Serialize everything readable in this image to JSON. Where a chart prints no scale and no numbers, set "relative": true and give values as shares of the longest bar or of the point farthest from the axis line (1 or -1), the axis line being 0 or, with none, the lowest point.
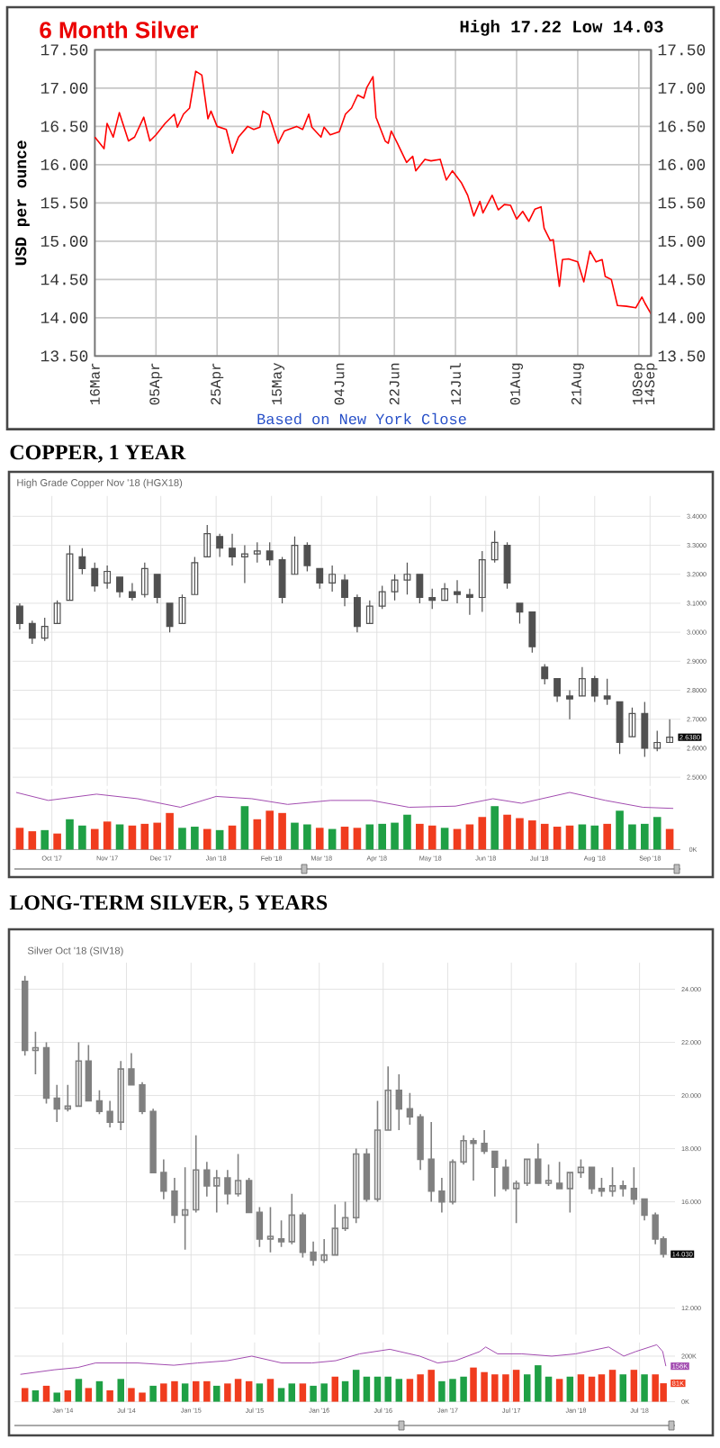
{
  "chart_data": [
    {
      "type": "line",
      "title": "6 Month Silver",
      "subtitle": "High 17.22 Low 14.03",
      "ylabel": "USD per ounce",
      "annotations": [
        "Based on New York Close"
      ],
      "x": [
        "2018-03-16",
        "2018-03-17",
        "2018-03-19",
        "2018-03-20",
        "2018-03-22",
        "2018-03-24",
        "2018-03-27",
        "2018-03-29",
        "2018-04-01",
        "2018-04-03",
        "2018-04-05",
        "2018-04-08",
        "2018-04-11",
        "2018-04-12",
        "2018-04-14",
        "2018-04-16",
        "2018-04-18",
        "2018-04-20",
        "2018-04-22",
        "2018-04-23",
        "2018-04-25",
        "2018-04-28",
        "2018-04-30",
        "2018-05-02",
        "2018-05-05",
        "2018-05-07",
        "2018-05-09",
        "2018-05-10",
        "2018-05-12",
        "2018-05-15",
        "2018-05-17",
        "2018-05-21",
        "2018-05-23",
        "2018-05-25",
        "2018-05-26",
        "2018-05-29",
        "2018-05-30",
        "2018-06-01",
        "2018-06-04",
        "2018-06-06",
        "2018-06-08",
        "2018-06-10",
        "2018-06-12",
        "2018-06-13",
        "2018-06-15",
        "2018-06-16",
        "2018-06-19",
        "2018-06-20",
        "2018-06-21",
        "2018-06-23",
        "2018-06-26",
        "2018-06-28",
        "2018-06-29",
        "2018-07-02",
        "2018-07-04",
        "2018-07-07",
        "2018-07-09",
        "2018-07-11",
        "2018-07-14",
        "2018-07-16",
        "2018-07-18",
        "2018-07-20",
        "2018-07-21",
        "2018-07-24",
        "2018-07-26",
        "2018-07-28",
        "2018-07-30",
        "2018-08-01",
        "2018-08-03",
        "2018-08-05",
        "2018-08-07",
        "2018-08-09",
        "2018-08-10",
        "2018-08-12",
        "2018-08-13",
        "2018-08-15",
        "2018-08-16",
        "2018-08-18",
        "2018-08-21",
        "2018-08-23",
        "2018-08-25",
        "2018-08-27",
        "2018-08-29",
        "2018-08-30",
        "2018-09-01",
        "2018-09-03",
        "2018-09-06",
        "2018-09-09",
        "2018-09-11",
        "2018-09-12",
        "2018-09-14"
      ],
      "values": [
        16.36,
        16.31,
        16.21,
        16.54,
        16.36,
        16.68,
        16.31,
        16.36,
        16.62,
        16.31,
        16.39,
        16.54,
        16.66,
        16.49,
        16.66,
        16.74,
        17.22,
        17.17,
        16.6,
        16.7,
        16.5,
        16.46,
        16.15,
        16.36,
        16.5,
        16.46,
        16.49,
        16.7,
        16.65,
        16.28,
        16.44,
        16.5,
        16.46,
        16.66,
        16.49,
        16.36,
        16.49,
        16.39,
        16.43,
        16.66,
        16.74,
        16.91,
        16.87,
        17.01,
        17.15,
        16.62,
        16.31,
        16.28,
        16.44,
        16.28,
        16.03,
        16.11,
        15.92,
        16.07,
        16.05,
        16.07,
        15.8,
        15.92,
        15.76,
        15.6,
        15.33,
        15.52,
        15.37,
        15.6,
        15.41,
        15.48,
        15.47,
        15.29,
        15.39,
        15.26,
        15.42,
        15.45,
        15.17,
        15.01,
        15.02,
        14.41,
        14.76,
        14.77,
        14.73,
        14.47,
        14.87,
        14.73,
        14.76,
        14.54,
        14.5,
        14.16,
        14.15,
        14.13,
        14.27,
        14.19,
        14.05
      ],
      "color": "#ff0000",
      "xlim": [
        "2018-03-16",
        "2018-09-14"
      ],
      "xticks": [
        {
          "value": "2018-03-16",
          "label": "16Mar"
        },
        {
          "value": "2018-04-05",
          "label": "05Apr"
        },
        {
          "value": "2018-04-25",
          "label": "25Apr"
        },
        {
          "value": "2018-05-15",
          "label": "15May"
        },
        {
          "value": "2018-06-04",
          "label": "04Jun"
        },
        {
          "value": "2018-06-22",
          "label": "22Jun"
        },
        {
          "value": "2018-07-12",
          "label": "12Jul"
        },
        {
          "value": "2018-08-01",
          "label": "01Aug"
        },
        {
          "value": "2018-08-21",
          "label": "21Aug"
        },
        {
          "value": "2018-09-10",
          "label": "10Sep"
        },
        {
          "value": "2018-09-14",
          "label": "14Sep"
        }
      ],
      "ylim": [
        13.5,
        17.5
      ],
      "yticks": [
        {
          "value": 13.5,
          "label": "13.50"
        },
        {
          "value": 14,
          "label": "14.00"
        },
        {
          "value": 14.5,
          "label": "14.50"
        },
        {
          "value": 15,
          "label": "15.00"
        },
        {
          "value": 15.5,
          "label": "15.50"
        },
        {
          "value": 16,
          "label": "16.00"
        },
        {
          "value": 16.5,
          "label": "16.50"
        },
        {
          "value": 17,
          "label": "17.00"
        },
        {
          "value": 17.5,
          "label": "17.50"
        }
      ],
      "y2lim": [
        13.5,
        17.5
      ],
      "y2ticks": [
        {
          "value": 13.5,
          "label": "13.50"
        },
        {
          "value": 14,
          "label": "14.00"
        },
        {
          "value": 14.5,
          "label": "14.50"
        },
        {
          "value": 15,
          "label": "15.00"
        },
        {
          "value": 15.5,
          "label": "15.50"
        },
        {
          "value": 16,
          "label": "16.00"
        },
        {
          "value": 16.5,
          "label": "16.50"
        },
        {
          "value": 17,
          "label": "17.00"
        },
        {
          "value": 17.5,
          "label": "17.50"
        }
      ],
      "grid": true
    },
    {
      "type": "candlestick",
      "title": "COPPER, 1 YEAR",
      "subtitle": "High Grade Copper Nov '18 (HGX18)",
      "x": [
        "2017-09-13",
        "2017-09-20",
        "2017-09-27",
        "2017-10-04",
        "2017-10-11",
        "2017-10-18",
        "2017-10-25",
        "2017-11-01",
        "2017-11-08",
        "2017-11-15",
        "2017-11-22",
        "2017-11-29",
        "2017-12-06",
        "2017-12-13",
        "2017-12-20",
        "2017-12-27",
        "2018-01-03",
        "2018-01-10",
        "2018-01-17",
        "2018-01-24",
        "2018-01-31",
        "2018-02-07",
        "2018-02-14",
        "2018-02-21",
        "2018-02-28",
        "2018-03-07",
        "2018-03-14",
        "2018-03-21",
        "2018-03-28",
        "2018-04-04",
        "2018-04-11",
        "2018-04-18",
        "2018-04-25",
        "2018-05-02",
        "2018-05-09",
        "2018-05-16",
        "2018-05-23",
        "2018-05-30",
        "2018-06-06",
        "2018-06-13",
        "2018-06-20",
        "2018-06-27",
        "2018-07-04",
        "2018-07-11",
        "2018-07-18",
        "2018-07-25",
        "2018-08-01",
        "2018-08-08",
        "2018-08-15",
        "2018-08-22",
        "2018-08-29",
        "2018-09-05",
        "2018-09-12"
      ],
      "ohlc": [
        [
          3.09,
          3.1,
          3.01,
          3.03
        ],
        [
          3.03,
          3.04,
          2.96,
          2.98
        ],
        [
          2.98,
          3.05,
          2.97,
          3.02
        ],
        [
          3.03,
          3.11,
          3.03,
          3.1
        ],
        [
          3.11,
          3.3,
          3.11,
          3.27
        ],
        [
          3.26,
          3.29,
          3.2,
          3.22
        ],
        [
          3.22,
          3.24,
          3.14,
          3.16
        ],
        [
          3.17,
          3.23,
          3.15,
          3.21
        ],
        [
          3.19,
          3.19,
          3.12,
          3.14
        ],
        [
          3.14,
          3.17,
          3.11,
          3.12
        ],
        [
          3.13,
          3.24,
          3.12,
          3.22
        ],
        [
          3.2,
          3.2,
          3.1,
          3.12
        ],
        [
          3.1,
          3.1,
          3.0,
          3.02
        ],
        [
          3.03,
          3.13,
          3.03,
          3.12
        ],
        [
          3.13,
          3.26,
          3.13,
          3.24
        ],
        [
          3.26,
          3.37,
          3.26,
          3.34
        ],
        [
          3.33,
          3.34,
          3.26,
          3.29
        ],
        [
          3.29,
          3.34,
          3.23,
          3.26
        ],
        [
          3.26,
          3.3,
          3.17,
          3.27
        ],
        [
          3.27,
          3.31,
          3.24,
          3.28
        ],
        [
          3.28,
          3.31,
          3.23,
          3.25
        ],
        [
          3.25,
          3.26,
          3.1,
          3.12
        ],
        [
          3.2,
          3.33,
          3.2,
          3.3
        ],
        [
          3.3,
          3.31,
          3.21,
          3.23
        ],
        [
          3.22,
          3.22,
          3.15,
          3.17
        ],
        [
          3.17,
          3.23,
          3.14,
          3.2
        ],
        [
          3.18,
          3.2,
          3.09,
          3.12
        ],
        [
          3.12,
          3.13,
          3.0,
          3.02
        ],
        [
          3.03,
          3.11,
          3.03,
          3.09
        ],
        [
          3.09,
          3.16,
          3.08,
          3.14
        ],
        [
          3.14,
          3.2,
          3.11,
          3.18
        ],
        [
          3.18,
          3.24,
          3.13,
          3.2
        ],
        [
          3.2,
          3.2,
          3.1,
          3.12
        ],
        [
          3.12,
          3.15,
          3.08,
          3.11
        ],
        [
          3.11,
          3.17,
          3.11,
          3.15
        ],
        [
          3.14,
          3.18,
          3.1,
          3.13
        ],
        [
          3.13,
          3.15,
          3.06,
          3.12
        ],
        [
          3.12,
          3.28,
          3.07,
          3.25
        ],
        [
          3.25,
          3.35,
          3.24,
          3.31
        ],
        [
          3.3,
          3.31,
          3.15,
          3.17
        ],
        [
          3.1,
          3.1,
          3.03,
          3.07
        ],
        [
          3.07,
          3.07,
          2.93,
          2.95
        ],
        [
          2.88,
          2.89,
          2.82,
          2.84
        ],
        [
          2.84,
          2.84,
          2.76,
          2.78
        ],
        [
          2.78,
          2.8,
          2.7,
          2.77
        ],
        [
          2.78,
          2.88,
          2.78,
          2.84
        ],
        [
          2.84,
          2.85,
          2.76,
          2.78
        ],
        [
          2.78,
          2.84,
          2.75,
          2.77
        ],
        [
          2.76,
          2.76,
          2.58,
          2.62
        ],
        [
          2.64,
          2.74,
          2.64,
          2.72
        ],
        [
          2.72,
          2.76,
          2.57,
          2.6
        ],
        [
          2.6,
          2.66,
          2.59,
          2.62
        ],
        [
          2.62,
          2.7,
          2.62,
          2.638
        ]
      ],
      "color": "#505050",
      "xlim": [
        "2017-09-09",
        "2018-09-18"
      ],
      "xticks": [
        {
          "value": "2017-10-01",
          "label": null
        },
        {
          "value": "2017-11-01",
          "label": null
        },
        {
          "value": "2017-12-01",
          "label": null
        },
        {
          "value": "2018-01-01",
          "label": null
        },
        {
          "value": "2018-02-01",
          "label": null
        },
        {
          "value": "2018-03-01",
          "label": null
        },
        {
          "value": "2018-04-01",
          "label": null
        },
        {
          "value": "2018-05-01",
          "label": null
        },
        {
          "value": "2018-06-01",
          "label": null
        },
        {
          "value": "2018-07-01",
          "label": null
        },
        {
          "value": "2018-08-01",
          "label": null
        },
        {
          "value": "2018-09-01",
          "label": null
        }
      ],
      "ylim": [
        2.47,
        3.47
      ],
      "yticks": [
        {
          "value": 2.5,
          "label": "2.5000"
        },
        {
          "value": 2.6,
          "label": "2.6000"
        },
        {
          "value": 2.7,
          "label": "2.7000"
        },
        {
          "value": 2.8,
          "label": "2.8000"
        },
        {
          "value": 2.9,
          "label": "2.9000"
        },
        {
          "value": 3.0,
          "label": "3.0000"
        },
        {
          "value": 3.1,
          "label": "3.1000"
        },
        {
          "value": 3.2,
          "label": "3.2000"
        },
        {
          "value": 3.3,
          "label": "3.3000"
        },
        {
          "value": 3.4,
          "label": "3.4000"
        }
      ],
      "annotations": [
        {
          "text": "2.6380",
          "x": "2018-09-14",
          "y": 2.638
        }
      ],
      "grid": true,
      "tick_labels": "y"
    },
    {
      "type": "bar",
      "relative": true,
      "series": [
        {
          "type": "bar",
          "x": [
            "2017-09-13",
            "2017-09-20",
            "2017-09-27",
            "2017-10-04",
            "2017-10-11",
            "2017-10-18",
            "2017-10-25",
            "2017-11-01",
            "2017-11-08",
            "2017-11-15",
            "2017-11-22",
            "2017-11-29",
            "2017-12-06",
            "2017-12-13",
            "2017-12-20",
            "2017-12-27",
            "2018-01-03",
            "2018-01-10",
            "2018-01-17",
            "2018-01-24",
            "2018-01-31",
            "2018-02-07",
            "2018-02-14",
            "2018-02-21",
            "2018-02-28",
            "2018-03-07",
            "2018-03-14",
            "2018-03-21",
            "2018-03-28",
            "2018-04-04",
            "2018-04-11",
            "2018-04-18",
            "2018-04-25",
            "2018-05-02",
            "2018-05-09",
            "2018-05-16",
            "2018-05-23",
            "2018-05-30",
            "2018-06-06",
            "2018-06-13",
            "2018-06-20",
            "2018-06-27",
            "2018-07-04",
            "2018-07-11",
            "2018-07-18",
            "2018-07-25",
            "2018-08-01",
            "2018-08-08",
            "2018-08-15",
            "2018-08-22",
            "2018-08-29",
            "2018-09-05",
            "2018-09-12"
          ],
          "values": [
            0.38,
            0.32,
            0.34,
            0.28,
            0.53,
            0.42,
            0.36,
            0.49,
            0.44,
            0.42,
            0.45,
            0.47,
            0.64,
            0.38,
            0.4,
            0.36,
            0.34,
            0.42,
            0.76,
            0.53,
            0.68,
            0.64,
            0.47,
            0.44,
            0.38,
            0.36,
            0.4,
            0.38,
            0.44,
            0.45,
            0.47,
            0.61,
            0.45,
            0.42,
            0.38,
            0.36,
            0.44,
            0.57,
            0.76,
            0.61,
            0.55,
            0.51,
            0.45,
            0.4,
            0.42,
            0.44,
            0.42,
            0.45,
            0.68,
            0.44,
            0.45,
            0.57,
            0.36
          ],
          "colors": [
            "#f03c1e",
            "#f03c1e",
            "#1fa045",
            "#f03c1e",
            "#1fa045",
            "#1fa045",
            "#f03c1e",
            "#f03c1e",
            "#1fa045",
            "#f03c1e",
            "#f03c1e",
            "#f03c1e",
            "#f03c1e",
            "#1fa045",
            "#1fa045",
            "#f03c1e",
            "#1fa045",
            "#f03c1e",
            "#1fa045",
            "#f03c1e",
            "#f03c1e",
            "#f03c1e",
            "#1fa045",
            "#1fa045",
            "#f03c1e",
            "#1fa045",
            "#f03c1e",
            "#f03c1e",
            "#1fa045",
            "#1fa045",
            "#1fa045",
            "#1fa045",
            "#f03c1e",
            "#f03c1e",
            "#1fa045",
            "#f03c1e",
            "#f03c1e",
            "#f03c1e",
            "#1fa045",
            "#f03c1e",
            "#f03c1e",
            "#f03c1e",
            "#f03c1e",
            "#f03c1e",
            "#f03c1e",
            "#1fa045",
            "#1fa045",
            "#f03c1e",
            "#1fa045",
            "#1fa045",
            "#1fa045",
            "#1fa045",
            "#f03c1e"
          ]
        },
        {
          "type": "line",
          "x": [
            "2017-09-11",
            "2017-09-29",
            "2017-10-26",
            "2017-11-18",
            "2017-12-12",
            "2018-01-01",
            "2018-01-21",
            "2018-02-10",
            "2018-03-06",
            "2018-03-29",
            "2018-04-19",
            "2018-05-15",
            "2018-06-05",
            "2018-06-21",
            "2018-07-18",
            "2018-08-07",
            "2018-08-28",
            "2018-09-14"
          ],
          "values": [
            1,
            0.86,
            0.97,
            0.89,
            0.74,
            0.93,
            0.89,
            0.79,
            0.86,
            0.86,
            0.74,
            0.76,
            0.89,
            0.81,
            1,
            0.86,
            0.74,
            0.72
          ],
          "color": "#a24bb0"
        }
      ],
      "xlim": [
        "2017-09-09",
        "2018-09-18"
      ],
      "xticks": [
        {
          "value": "2017-10-01",
          "label": "Oct '17"
        },
        {
          "value": "2017-11-01",
          "label": "Nov '17"
        },
        {
          "value": "2017-12-01",
          "label": "Dec '17"
        },
        {
          "value": "2018-01-01",
          "label": "Jan '18"
        },
        {
          "value": "2018-02-01",
          "label": "Feb '18"
        },
        {
          "value": "2018-03-01",
          "label": "Mar '18"
        },
        {
          "value": "2018-04-01",
          "label": "Apr '18"
        },
        {
          "value": "2018-05-01",
          "label": "May '18"
        },
        {
          "value": "2018-06-01",
          "label": "Jun '18"
        },
        {
          "value": "2018-07-01",
          "label": "Jul '18"
        },
        {
          "value": "2018-08-01",
          "label": "Aug '18"
        },
        {
          "value": "2018-09-01",
          "label": "Sep '18"
        }
      ],
      "annotations": [
        "0K"
      ],
      "grid": "x"
    },
    {
      "type": "candlestick",
      "title": "LONG-TERM SILVER, 5 YEARS",
      "subtitle": "Silver Oct '18 (SIV18)",
      "x": [
        "2013-09-15",
        "2013-10-15",
        "2013-11-15",
        "2013-12-15",
        "2014-01-15",
        "2014-02-15",
        "2014-03-15",
        "2014-04-15",
        "2014-05-15",
        "2014-06-15",
        "2014-07-15",
        "2014-08-15",
        "2014-09-15",
        "2014-10-15",
        "2014-11-15",
        "2014-12-15",
        "2015-01-15",
        "2015-02-15",
        "2015-03-15",
        "2015-04-15",
        "2015-05-15",
        "2015-06-15",
        "2015-07-15",
        "2015-08-15",
        "2015-09-15",
        "2015-10-15",
        "2015-11-15",
        "2015-12-15",
        "2016-01-15",
        "2016-02-15",
        "2016-03-15",
        "2016-04-15",
        "2016-05-15",
        "2016-06-15",
        "2016-07-15",
        "2016-08-15",
        "2016-09-15",
        "2016-10-15",
        "2016-11-15",
        "2016-12-15",
        "2017-01-15",
        "2017-02-15",
        "2017-03-15",
        "2017-04-15",
        "2017-05-15",
        "2017-06-15",
        "2017-07-15",
        "2017-08-15",
        "2017-09-15",
        "2017-10-15",
        "2017-11-15",
        "2017-12-15",
        "2018-01-15",
        "2018-02-15",
        "2018-03-15",
        "2018-04-15",
        "2018-05-15",
        "2018-06-15",
        "2018-07-15",
        "2018-08-15",
        "2018-09-07"
      ],
      "ohlc": [
        [
          24.3,
          24.5,
          21.5,
          21.7
        ],
        [
          21.7,
          22.4,
          20.8,
          21.8
        ],
        [
          21.8,
          22.0,
          19.7,
          19.9
        ],
        [
          19.9,
          20.4,
          19.0,
          19.5
        ],
        [
          19.5,
          20.4,
          19.4,
          19.6
        ],
        [
          19.6,
          22.0,
          19.6,
          21.3
        ],
        [
          21.3,
          21.9,
          19.8,
          19.8
        ],
        [
          19.8,
          20.2,
          19.3,
          19.4
        ],
        [
          19.4,
          19.8,
          18.8,
          19.0
        ],
        [
          19.0,
          21.3,
          18.7,
          21.0
        ],
        [
          21.0,
          21.6,
          20.4,
          20.4
        ],
        [
          20.4,
          20.5,
          19.3,
          19.4
        ],
        [
          19.4,
          19.5,
          17.1,
          17.1
        ],
        [
          17.1,
          17.6,
          16.1,
          16.4
        ],
        [
          16.4,
          16.9,
          15.2,
          15.5
        ],
        [
          15.5,
          17.3,
          14.2,
          15.7
        ],
        [
          15.7,
          18.5,
          15.6,
          17.2
        ],
        [
          17.2,
          17.5,
          16.2,
          16.6
        ],
        [
          16.6,
          17.2,
          15.6,
          16.9
        ],
        [
          16.9,
          17.2,
          15.9,
          16.3
        ],
        [
          16.3,
          17.8,
          16.2,
          16.8
        ],
        [
          16.8,
          16.9,
          15.6,
          15.6
        ],
        [
          15.6,
          15.8,
          14.3,
          14.6
        ],
        [
          14.6,
          15.8,
          14.1,
          14.7
        ],
        [
          14.6,
          15.3,
          14.3,
          14.5
        ],
        [
          14.5,
          16.3,
          14.4,
          15.5
        ],
        [
          15.5,
          15.6,
          13.9,
          14.1
        ],
        [
          14.1,
          14.5,
          13.6,
          13.8
        ],
        [
          13.8,
          14.6,
          13.7,
          14.0
        ],
        [
          14.0,
          15.9,
          14.0,
          15.0
        ],
        [
          15.0,
          16.0,
          14.9,
          15.4
        ],
        [
          15.4,
          18.0,
          15.2,
          17.8
        ],
        [
          17.8,
          18.0,
          16.0,
          16.1
        ],
        [
          16.1,
          19.8,
          16.0,
          18.7
        ],
        [
          18.7,
          21.1,
          18.7,
          20.2
        ],
        [
          20.2,
          20.8,
          18.7,
          19.5
        ],
        [
          19.5,
          20.1,
          18.9,
          19.2
        ],
        [
          19.2,
          19.3,
          17.2,
          17.6
        ],
        [
          17.6,
          19.0,
          16.0,
          16.4
        ],
        [
          16.4,
          16.9,
          15.6,
          16.0
        ],
        [
          16.0,
          17.6,
          15.9,
          17.5
        ],
        [
          17.5,
          18.5,
          17.4,
          18.3
        ],
        [
          18.3,
          18.4,
          16.8,
          18.2
        ],
        [
          18.2,
          18.7,
          17.8,
          17.9
        ],
        [
          17.9,
          17.9,
          16.2,
          17.3
        ],
        [
          17.3,
          17.6,
          16.4,
          16.5
        ],
        [
          16.5,
          16.8,
          15.2,
          16.7
        ],
        [
          16.7,
          17.6,
          16.6,
          17.6
        ],
        [
          17.6,
          18.2,
          16.7,
          16.7
        ],
        [
          16.7,
          17.4,
          16.6,
          16.8
        ],
        [
          16.7,
          17.5,
          16.5,
          16.5
        ],
        [
          16.5,
          17.1,
          15.6,
          17.1
        ],
        [
          17.1,
          17.6,
          16.9,
          17.3
        ],
        [
          17.3,
          17.3,
          16.3,
          16.5
        ],
        [
          16.5,
          16.9,
          16.2,
          16.4
        ],
        [
          16.4,
          17.3,
          16.2,
          16.6
        ],
        [
          16.6,
          16.8,
          16.2,
          16.5
        ],
        [
          16.5,
          17.3,
          15.9,
          16.1
        ],
        [
          16.1,
          16.1,
          15.3,
          15.5
        ],
        [
          15.5,
          15.6,
          14.4,
          14.6
        ],
        [
          14.6,
          14.7,
          13.9,
          14.03
        ]
      ],
      "color": "#808080",
      "xlim": [
        "2013-08-16",
        "2018-10-10"
      ],
      "xticks": [
        {
          "value": "2014-01-01",
          "label": null
        },
        {
          "value": "2014-07-01",
          "label": null
        },
        {
          "value": "2015-01-01",
          "label": null
        },
        {
          "value": "2015-07-01",
          "label": null
        },
        {
          "value": "2016-01-01",
          "label": null
        },
        {
          "value": "2016-07-01",
          "label": null
        },
        {
          "value": "2017-01-01",
          "label": null
        },
        {
          "value": "2017-07-01",
          "label": null
        },
        {
          "value": "2018-01-01",
          "label": null
        },
        {
          "value": "2018-07-01",
          "label": null
        }
      ],
      "ylim": [
        11,
        25
      ],
      "yticks": [
        {
          "value": 12,
          "label": "12.000"
        },
        {
          "value": 14,
          "label": null
        },
        {
          "value": 16,
          "label": "16.000"
        },
        {
          "value": 18,
          "label": "18.000"
        },
        {
          "value": 20,
          "label": "20.000"
        },
        {
          "value": 22,
          "label": "22.000"
        },
        {
          "value": 24,
          "label": "24.000"
        }
      ],
      "annotations": [
        {
          "text": "14.030",
          "x": "2018-09-14",
          "y": 14.03
        }
      ],
      "grid": true,
      "tick_labels": "y"
    },
    {
      "type": "bar",
      "series": [
        {
          "type": "bar",
          "x": [
            "2013-09-15",
            "2013-10-15",
            "2013-11-15",
            "2013-12-15",
            "2014-01-15",
            "2014-02-15",
            "2014-03-15",
            "2014-04-15",
            "2014-05-15",
            "2014-06-15",
            "2014-07-15",
            "2014-08-15",
            "2014-09-15",
            "2014-10-15",
            "2014-11-15",
            "2014-12-15",
            "2015-01-15",
            "2015-02-15",
            "2015-03-15",
            "2015-04-15",
            "2015-05-15",
            "2015-06-15",
            "2015-07-15",
            "2015-08-15",
            "2015-09-15",
            "2015-10-15",
            "2015-11-15",
            "2015-12-15",
            "2016-01-15",
            "2016-02-15",
            "2016-03-15",
            "2016-04-15",
            "2016-05-15",
            "2016-06-15",
            "2016-07-15",
            "2016-08-15",
            "2016-09-15",
            "2016-10-15",
            "2016-11-15",
            "2016-12-15",
            "2017-01-15",
            "2017-02-15",
            "2017-03-15",
            "2017-04-15",
            "2017-05-15",
            "2017-06-15",
            "2017-07-15",
            "2017-08-15",
            "2017-09-15",
            "2017-10-15",
            "2017-11-15",
            "2017-12-15",
            "2018-01-15",
            "2018-02-15",
            "2018-03-15",
            "2018-04-15",
            "2018-05-15",
            "2018-06-15",
            "2018-07-15",
            "2018-08-15",
            "2018-09-07"
          ],
          "values": [
            60,
            50,
            70,
            40,
            50,
            100,
            60,
            90,
            50,
            100,
            60,
            40,
            70,
            80,
            90,
            80,
            90,
            90,
            70,
            80,
            100,
            90,
            80,
            100,
            60,
            80,
            80,
            70,
            80,
            110,
            90,
            140,
            110,
            110,
            110,
            100,
            100,
            120,
            140,
            90,
            100,
            110,
            150,
            130,
            120,
            120,
            140,
            120,
            160,
            110,
            100,
            110,
            120,
            110,
            120,
            140,
            120,
            140,
            120,
            120,
            81
          ],
          "colors": [
            "#f03c1e",
            "#1fa045",
            "#f03c1e",
            "#1fa045",
            "#f03c1e",
            "#1fa045",
            "#f03c1e",
            "#1fa045",
            "#f03c1e",
            "#1fa045",
            "#f03c1e",
            "#f03c1e",
            "#1fa045",
            "#f03c1e",
            "#f03c1e",
            "#1fa045",
            "#f03c1e",
            "#f03c1e",
            "#1fa045",
            "#f03c1e",
            "#f03c1e",
            "#f03c1e",
            "#1fa045",
            "#f03c1e",
            "#1fa045",
            "#1fa045",
            "#f03c1e",
            "#1fa045",
            "#1fa045",
            "#f03c1e",
            "#1fa045",
            "#1fa045",
            "#1fa045",
            "#1fa045",
            "#1fa045",
            "#1fa045",
            "#f03c1e",
            "#f03c1e",
            "#f03c1e",
            "#1fa045",
            "#1fa045",
            "#1fa045",
            "#f03c1e",
            "#f03c1e",
            "#f03c1e",
            "#f03c1e",
            "#f03c1e",
            "#1fa045",
            "#1fa045",
            "#1fa045",
            "#f03c1e",
            "#1fa045",
            "#f03c1e",
            "#f03c1e",
            "#f03c1e",
            "#f03c1e",
            "#1fa045",
            "#f03c1e",
            "#1fa045",
            "#f03c1e",
            "#f03c1e"
          ]
        },
        {
          "type": "line",
          "x": [
            "2013-09-02",
            "2013-12-07",
            "2014-02-12",
            "2014-04-04",
            "2014-08-02",
            "2014-11-13",
            "2015-01-20",
            "2015-04-15",
            "2015-06-23",
            "2015-09-16",
            "2015-12-11",
            "2016-02-17",
            "2016-04-25",
            "2016-07-20",
            "2016-10-13",
            "2016-12-03",
            "2017-01-23",
            "2017-04-02",
            "2017-04-19",
            "2017-05-23",
            "2017-07-31",
            "2017-10-24",
            "2017-12-31",
            "2018-04-04",
            "2018-05-17",
            "2018-06-20",
            "2018-08-19",
            "2018-09-05",
            "2018-09-14"
          ],
          "values": [
            120,
            140,
            150,
            170,
            170,
            160,
            170,
            180,
            200,
            170,
            170,
            180,
            210,
            230,
            200,
            170,
            180,
            220,
            240,
            210,
            210,
            200,
            210,
            240,
            200,
            220,
            250,
            220,
            156
          ],
          "color": "#a24bb0"
        }
      ],
      "xlim": [
        "2013-08-16",
        "2018-10-10"
      ],
      "xticks": [
        {
          "value": "2014-01-01",
          "label": "Jan '14"
        },
        {
          "value": "2014-07-01",
          "label": "Jul '14"
        },
        {
          "value": "2015-01-01",
          "label": "Jan '15"
        },
        {
          "value": "2015-07-01",
          "label": "Jul '15"
        },
        {
          "value": "2016-01-01",
          "label": "Jan '16"
        },
        {
          "value": "2016-07-01",
          "label": "Jul '16"
        },
        {
          "value": "2017-01-01",
          "label": "Jan '17"
        },
        {
          "value": "2017-07-01",
          "label": "Jul '17"
        },
        {
          "value": "2018-01-01",
          "label": "Jan '18"
        },
        {
          "value": "2018-07-01",
          "label": "Jul '18"
        }
      ],
      "ylim": [
        0,
        260
      ],
      "yticks": [
        {
          "value": 0,
          "label": "0K"
        },
        {
          "value": 200,
          "label": "200K"
        }
      ],
      "annotations": [
        {
          "text": "81K",
          "x": "2018-09-14",
          "y": 81
        },
        {
          "text": "156K",
          "x": "2018-09-14",
          "y": 156
        }
      ],
      "grid": true
    }
  ]
}
